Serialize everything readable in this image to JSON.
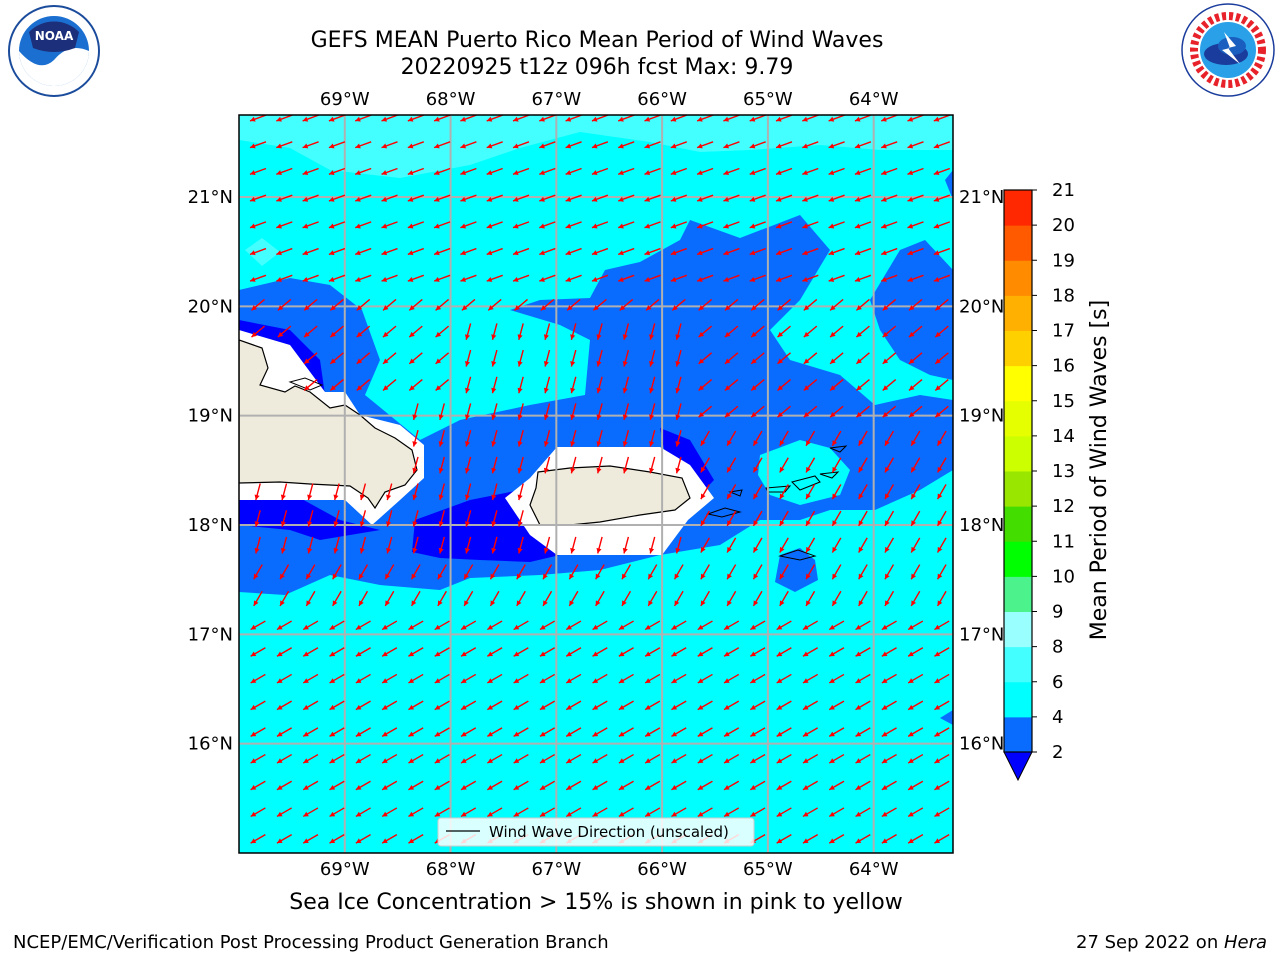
{
  "header": {
    "title_line1": "GEFS MEAN Puerto Rico Mean Period of Wind Waves",
    "title_line2": "20220925 t12z 096h fcst   Max: 9.79"
  },
  "logos": {
    "left": "noaa-logo",
    "left_text": "NOAA",
    "right": "nws-logo"
  },
  "map": {
    "lon_labels": [
      "69°W",
      "68°W",
      "67°W",
      "66°W",
      "65°W",
      "64°W"
    ],
    "lon_values": [
      -69,
      -68,
      -67,
      -66,
      -65,
      -64
    ],
    "lat_labels": [
      "21°N",
      "20°N",
      "19°N",
      "18°N",
      "17°N",
      "16°N"
    ],
    "lat_values": [
      21,
      20,
      19,
      18,
      17,
      16
    ],
    "extent": {
      "lon_min": -70,
      "lon_max": -63.25,
      "lat_min": 15,
      "lat_max": 21.75
    },
    "legend_label": "Wind Wave Direction (unscaled)",
    "arrow_color": "#ff0000",
    "land_color": "#efebdc"
  },
  "colorbar": {
    "label": "Mean Period of Wind Waves [s]",
    "ticks": [
      "2",
      "4",
      "6",
      "8",
      "9",
      "10",
      "11",
      "12",
      "13",
      "14",
      "15",
      "16",
      "17",
      "18",
      "19",
      "20",
      "21"
    ],
    "colors": [
      "#0a6bff",
      "#00ffff",
      "#44ffff",
      "#99ffff",
      "#4cf28c",
      "#00ff00",
      "#44dd00",
      "#99e600",
      "#ccff00",
      "#e6ff00",
      "#ffff00",
      "#ffd000",
      "#ffb000",
      "#ff8c00",
      "#ff5a00",
      "#ff2800"
    ],
    "under_color": "#0000ff"
  },
  "footer": {
    "sea_ice_note": "Sea Ice Concentration > 15% is shown in pink to yellow",
    "left": "NCEP/EMC/Verification Post Processing Product Generation Branch",
    "date": "27 Sep 2022 on ",
    "machine": "Hera"
  }
}
